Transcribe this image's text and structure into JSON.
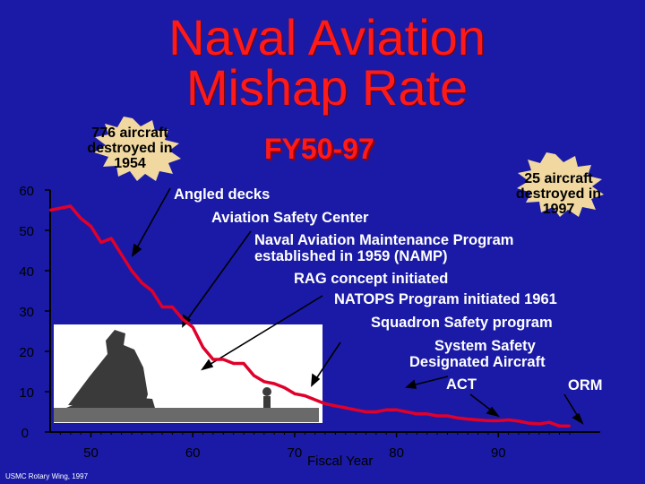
{
  "title_line1": "Naval Aviation",
  "title_line2": "Mishap Rate",
  "subtitle": "FY50-97",
  "burst_left": {
    "line1": "776 aircraft",
    "line2": "destroyed in",
    "line3": "1954"
  },
  "burst_right": {
    "line1": "25 aircraft",
    "line2": "destroyed in",
    "line3": "1997"
  },
  "annotations": [
    "Angled decks",
    "Aviation Safety Center",
    "Naval Aviation Maintenance Program",
    "established in 1959 (NAMP)",
    "RAG concept initiated",
    "NATOPS Program initiated 1961",
    "Squadron Safety program",
    "System Safety",
    "Designated Aircraft",
    "ACT",
    "ORM"
  ],
  "footer": "USMC Rotary Wing, 1997",
  "colors": {
    "background": "#1a1aa6",
    "title": "#ff1a1a",
    "line": "#e0002a",
    "axis": "#000000"
  },
  "chart_data": {
    "type": "line",
    "title": "Naval Aviation Mishap Rate",
    "subtitle": "FY50-97",
    "xlabel": "Fiscal Year",
    "ylabel": "",
    "xlim": [
      46,
      100
    ],
    "ylim": [
      0,
      60
    ],
    "x_ticks": [
      50,
      60,
      70,
      80,
      90
    ],
    "y_ticks": [
      0,
      10,
      20,
      30,
      40,
      50,
      60
    ],
    "series": [
      {
        "name": "Mishap Rate",
        "x": [
          46,
          48,
          49,
          50,
          51,
          52,
          53,
          54,
          55,
          56,
          57,
          58,
          59,
          60,
          61,
          62,
          63,
          64,
          65,
          66,
          67,
          68,
          69,
          70,
          71,
          72,
          73,
          74,
          75,
          76,
          77,
          78,
          79,
          80,
          81,
          82,
          83,
          84,
          85,
          86,
          87,
          88,
          89,
          90,
          91,
          92,
          93,
          94,
          95,
          96,
          97
        ],
        "y": [
          55,
          56,
          53,
          51,
          47,
          48,
          44,
          40,
          37,
          35,
          31,
          31,
          28,
          26,
          21,
          18,
          18,
          17,
          17,
          14,
          12.5,
          12,
          11,
          9.5,
          9,
          8,
          7,
          6.5,
          6,
          5.5,
          5,
          5,
          5.5,
          5.5,
          5,
          4.5,
          4.5,
          4,
          4,
          3.5,
          3.2,
          3,
          2.8,
          2.8,
          3,
          2.7,
          2.2,
          2,
          2.4,
          1.5,
          1.5
        ]
      }
    ]
  }
}
